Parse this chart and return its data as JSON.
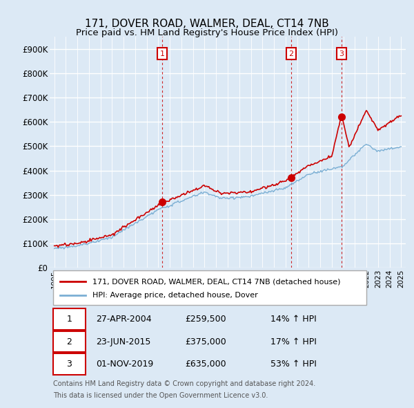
{
  "title": "171, DOVER ROAD, WALMER, DEAL, CT14 7NB",
  "subtitle": "Price paid vs. HM Land Registry's House Price Index (HPI)",
  "ylim": [
    0,
    950000
  ],
  "yticks": [
    0,
    100000,
    200000,
    300000,
    400000,
    500000,
    600000,
    700000,
    800000,
    900000
  ],
  "ytick_labels": [
    "£0",
    "£100K",
    "£200K",
    "£300K",
    "£400K",
    "£500K",
    "£600K",
    "£700K",
    "£800K",
    "£900K"
  ],
  "background_color": "#dce9f5",
  "grid_color": "#ffffff",
  "sale_color": "#cc0000",
  "hpi_color": "#7bafd4",
  "vline_color": "#cc0000",
  "purchases": [
    {
      "date_num": 2004.32,
      "price": 259500,
      "label": "1",
      "date_str": "27-APR-2004",
      "pct": "14%"
    },
    {
      "date_num": 2015.48,
      "price": 375000,
      "label": "2",
      "date_str": "23-JUN-2015",
      "pct": "17%"
    },
    {
      "date_num": 2019.84,
      "price": 635000,
      "label": "3",
      "date_str": "01-NOV-2019",
      "pct": "53%"
    }
  ],
  "legend_line1": "171, DOVER ROAD, WALMER, DEAL, CT14 7NB (detached house)",
  "legend_line2": "HPI: Average price, detached house, Dover",
  "footer1": "Contains HM Land Registry data © Crown copyright and database right 2024.",
  "footer2": "This data is licensed under the Open Government Licence v3.0.",
  "xlim_left": 1994.6,
  "xlim_right": 2025.4
}
